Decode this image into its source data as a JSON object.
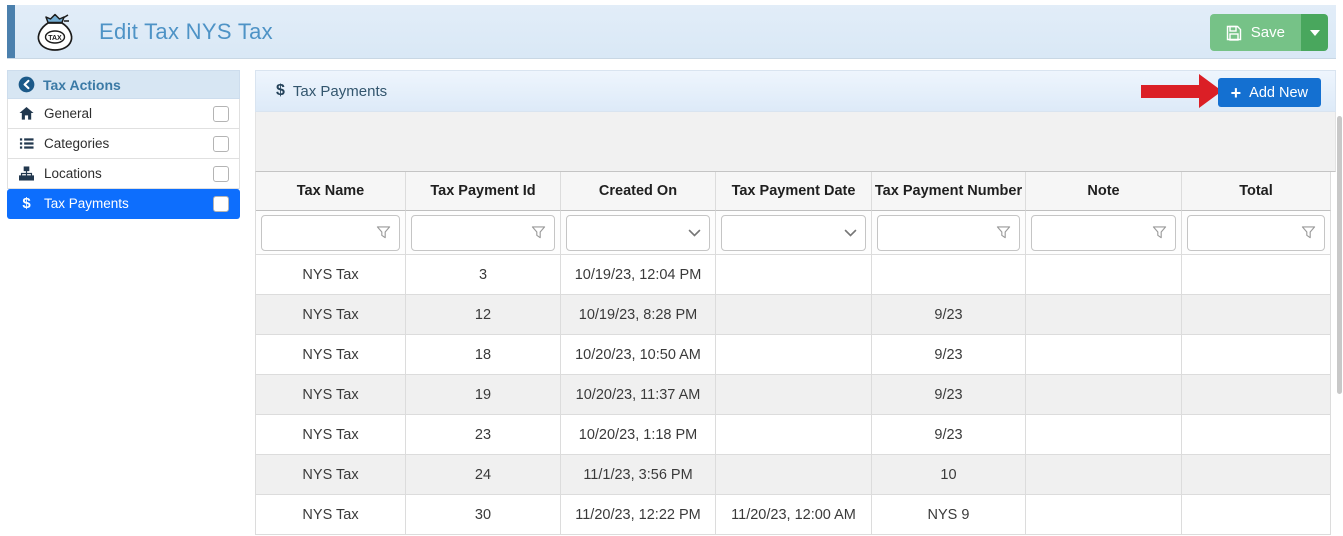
{
  "header": {
    "title": "Edit Tax NYS Tax",
    "save_label": "Save"
  },
  "sidebar": {
    "header": "Tax Actions",
    "items": [
      {
        "label": "General",
        "icon": "home-icon",
        "selected": false
      },
      {
        "label": "Categories",
        "icon": "list-icon",
        "selected": false
      },
      {
        "label": "Locations",
        "icon": "sitemap-icon",
        "selected": false
      },
      {
        "label": "Tax Payments",
        "icon": "dollar-icon",
        "selected": true
      }
    ]
  },
  "panel": {
    "title": "Tax Payments",
    "add_new_label": "Add New"
  },
  "table": {
    "columns": [
      {
        "label": "Tax Name",
        "filter": "funnel"
      },
      {
        "label": "Tax Payment Id",
        "filter": "funnel"
      },
      {
        "label": "Created On",
        "filter": "dropdown"
      },
      {
        "label": "Tax Payment Date",
        "filter": "dropdown"
      },
      {
        "label": "Tax Payment Number",
        "filter": "funnel"
      },
      {
        "label": "Note",
        "filter": "funnel"
      },
      {
        "label": "Total",
        "filter": "funnel"
      }
    ],
    "rows": [
      [
        "NYS Tax",
        "3",
        "10/19/23, 12:04 PM",
        "",
        "",
        "",
        ""
      ],
      [
        "NYS Tax",
        "12",
        "10/19/23, 8:28 PM",
        "",
        "9/23",
        "",
        ""
      ],
      [
        "NYS Tax",
        "18",
        "10/20/23, 10:50 AM",
        "",
        "9/23",
        "",
        ""
      ],
      [
        "NYS Tax",
        "19",
        "10/20/23, 11:37 AM",
        "",
        "9/23",
        "",
        ""
      ],
      [
        "NYS Tax",
        "23",
        "10/20/23, 1:18 PM",
        "",
        "9/23",
        "",
        ""
      ],
      [
        "NYS Tax",
        "24",
        "11/1/23, 3:56 PM",
        "",
        "10",
        "",
        ""
      ],
      [
        "NYS Tax",
        "30",
        "11/20/23, 12:22 PM",
        "11/20/23, 12:00 AM",
        "NYS 9",
        "",
        ""
      ]
    ]
  },
  "icons": {
    "plus": "+",
    "dollar": "$"
  },
  "colors": {
    "header_accent": "#4b80ad",
    "title_blue": "#4e93c6",
    "selected_blue": "#0d6efd",
    "add_new_blue": "#1470d1",
    "save_green": "#76c287",
    "save_green_dark": "#49a75d",
    "annotation_red": "#db1f26",
    "row_alt": "#f0f0f0"
  }
}
